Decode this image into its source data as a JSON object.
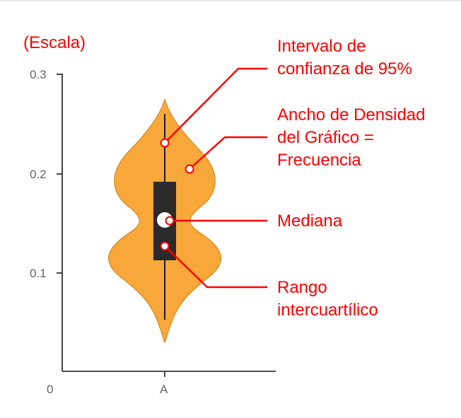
{
  "colors": {
    "violin_fill": "#f8a83a",
    "violin_stroke": "#e0902a",
    "box": "#2a2a2a",
    "median": "#ffffff",
    "annotation": "#ff0000",
    "axis": "#333333",
    "tick_text": "#666666"
  },
  "chart_data": {
    "type": "violin",
    "ylabel": "(Escala)",
    "ylim": [
      0,
      0.3
    ],
    "yticks": [
      "0.3",
      "0.2",
      "0.1"
    ],
    "ytick_values": [
      0.3,
      0.2,
      0.1
    ],
    "origin_label": "0",
    "categories": [
      "A"
    ],
    "series": [
      {
        "category": "A",
        "whisker_low": 0.05,
        "whisker_high": 0.26,
        "q1": 0.113,
        "q3": 0.193,
        "median": 0.153,
        "violin_min": 0.03,
        "violin_max": 0.275
      }
    ],
    "annotations": [
      {
        "lines": [
          "Intervalo de",
          "confianza de 95%"
        ],
        "points_to": "whisker"
      },
      {
        "lines": [
          "Ancho de Densidad",
          "del Gráfico =",
          "Frecuencia"
        ],
        "points_to": "violin-width"
      },
      {
        "lines": [
          "Mediana"
        ],
        "points_to": "median"
      },
      {
        "lines": [
          "Rango",
          "intercuartílico"
        ],
        "points_to": "box"
      }
    ]
  }
}
